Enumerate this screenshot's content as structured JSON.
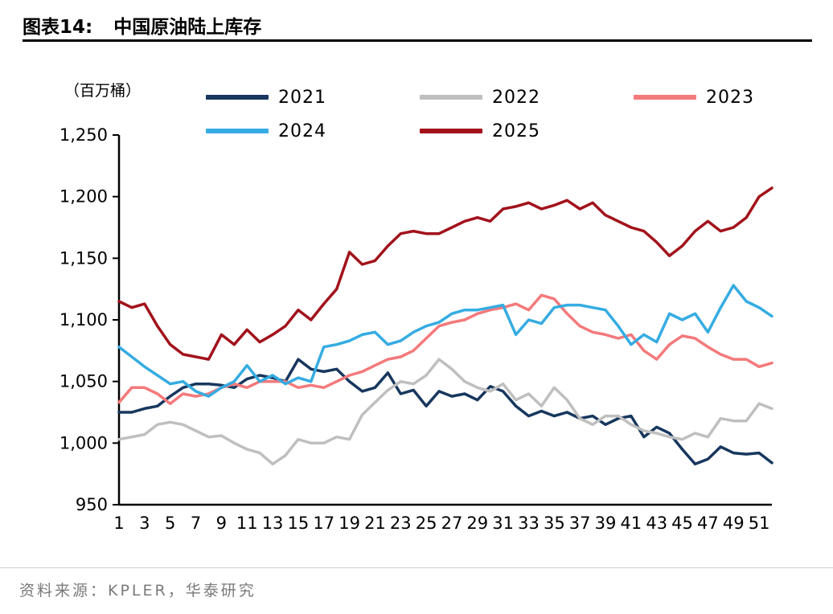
{
  "header": {
    "title_prefix": "图表14:",
    "title": "中国原油陆上库存"
  },
  "unit_label": "（百万桶）",
  "footer": {
    "source": "资料来源：KPLER，华泰研究"
  },
  "chart_data": {
    "type": "line",
    "title": "中国原油陆上库存",
    "ylabel": "（百万桶）",
    "xlabel": "",
    "grid": false,
    "legend_position": "top",
    "ylim": [
      950,
      1250
    ],
    "y_ticks": [
      950,
      1000,
      1050,
      1100,
      1150,
      1200,
      1250
    ],
    "x": [
      1,
      2,
      3,
      4,
      5,
      6,
      7,
      8,
      9,
      10,
      11,
      12,
      13,
      14,
      15,
      16,
      17,
      18,
      19,
      20,
      21,
      22,
      23,
      24,
      25,
      26,
      27,
      28,
      29,
      30,
      31,
      32,
      33,
      34,
      35,
      36,
      37,
      38,
      39,
      40,
      41,
      42,
      43,
      44,
      45,
      46,
      47,
      48,
      49,
      50,
      51,
      52
    ],
    "x_tick_labels": [
      "1",
      "3",
      "5",
      "7",
      "9",
      "11",
      "13",
      "15",
      "17",
      "19",
      "21",
      "23",
      "25",
      "27",
      "29",
      "31",
      "33",
      "35",
      "37",
      "39",
      "41",
      "43",
      "45",
      "47",
      "49",
      "51"
    ],
    "series": [
      {
        "name": "2021",
        "color": "#17375E",
        "values": [
          1025,
          1025,
          1028,
          1030,
          1038,
          1045,
          1048,
          1048,
          1047,
          1045,
          1052,
          1055,
          1053,
          1050,
          1068,
          1060,
          1058,
          1060,
          1050,
          1042,
          1045,
          1057,
          1040,
          1043,
          1030,
          1042,
          1038,
          1040,
          1035,
          1046,
          1042,
          1030,
          1022,
          1026,
          1022,
          1025,
          1020,
          1022,
          1015,
          1020,
          1022,
          1005,
          1013,
          1008,
          995,
          983,
          987,
          997,
          992,
          991,
          992,
          984
        ]
      },
      {
        "name": "2022",
        "color": "#BFBFBF",
        "values": [
          1003,
          1005,
          1007,
          1015,
          1017,
          1015,
          1010,
          1005,
          1006,
          1000,
          995,
          992,
          983,
          990,
          1003,
          1000,
          1000,
          1005,
          1003,
          1023,
          1033,
          1043,
          1050,
          1048,
          1055,
          1068,
          1060,
          1050,
          1045,
          1042,
          1048,
          1035,
          1040,
          1030,
          1045,
          1035,
          1020,
          1015,
          1022,
          1022,
          1015,
          1010,
          1008,
          1005,
          1003,
          1008,
          1005,
          1020,
          1018,
          1018,
          1032,
          1028
        ]
      },
      {
        "name": "2023",
        "color": "#F4797B",
        "values": [
          1033,
          1045,
          1045,
          1040,
          1032,
          1040,
          1038,
          1040,
          1045,
          1048,
          1045,
          1050,
          1050,
          1050,
          1045,
          1047,
          1045,
          1050,
          1055,
          1058,
          1063,
          1068,
          1070,
          1075,
          1085,
          1095,
          1098,
          1100,
          1105,
          1108,
          1110,
          1113,
          1108,
          1120,
          1117,
          1105,
          1095,
          1090,
          1088,
          1085,
          1088,
          1075,
          1068,
          1080,
          1087,
          1085,
          1078,
          1072,
          1068,
          1068,
          1062,
          1065
        ]
      },
      {
        "name": "2024",
        "color": "#35ACE2",
        "values": [
          1078,
          1070,
          1062,
          1055,
          1048,
          1050,
          1042,
          1038,
          1045,
          1050,
          1063,
          1050,
          1055,
          1048,
          1053,
          1050,
          1078,
          1080,
          1083,
          1088,
          1090,
          1080,
          1083,
          1090,
          1095,
          1098,
          1105,
          1108,
          1108,
          1110,
          1112,
          1088,
          1100,
          1097,
          1110,
          1112,
          1112,
          1110,
          1108,
          1095,
          1080,
          1088,
          1082,
          1105,
          1100,
          1105,
          1090,
          1110,
          1128,
          1115,
          1110,
          1103
        ]
      },
      {
        "name": "2025",
        "color": "#A2121B",
        "values": [
          1115,
          1110,
          1113,
          1095,
          1080,
          1072,
          1070,
          1068,
          1088,
          1080,
          1092,
          1082,
          1088,
          1095,
          1108,
          1100,
          1113,
          1125,
          1155,
          1145,
          1148,
          1160,
          1170,
          1172,
          1170,
          1170,
          1175,
          1180,
          1183,
          1180,
          1190,
          1192,
          1195,
          1190,
          1193,
          1197,
          1190,
          1195,
          1185,
          1180,
          1175,
          1172,
          1163,
          1152,
          1160,
          1172,
          1180,
          1172,
          1175,
          1183,
          1200,
          1207
        ]
      }
    ]
  }
}
